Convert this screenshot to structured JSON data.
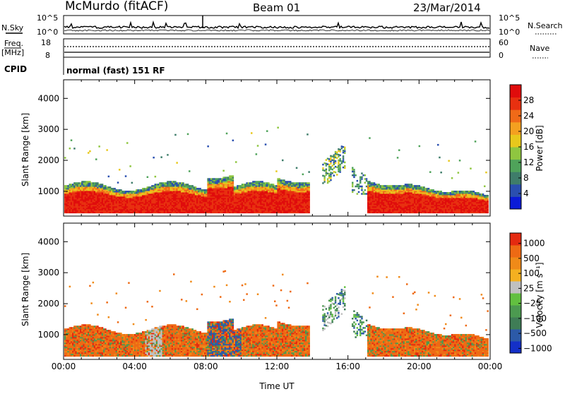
{
  "header": {
    "station": "McMurdo (fitACF)",
    "beam": "Beam 01",
    "date": "23/Mar/2014"
  },
  "summary": {
    "nsky_label": "N.Sky",
    "nsearch_label": "N.Search",
    "noise_ticks_left": [
      "10^5",
      "10^0"
    ],
    "noise_ticks_right": [
      "10^5",
      "10^0"
    ],
    "freq_label": "Freq.",
    "freq_unit": "[MHz]",
    "freq_ticks": [
      "18",
      "8"
    ],
    "nave_label": "Nave",
    "nave_ticks": [
      "60",
      "0"
    ],
    "cpid_label": "CPID",
    "cpid_value": "normal (fast) 151 RF"
  },
  "chart_data": [
    {
      "type": "heatmap",
      "name": "power",
      "ylabel": "Slant Range [km]",
      "xlabel": "",
      "yticks": [
        "1000",
        "2000",
        "3000",
        "4000"
      ],
      "ylim": [
        200,
        4600
      ],
      "xlim_hours": [
        0,
        24
      ],
      "colorbar": {
        "label": "Power [dB]",
        "ticks": [
          "4",
          "8",
          "12",
          "16",
          "20",
          "24",
          "28"
        ],
        "colors": [
          "#0a1bd8",
          "#2a4fb0",
          "#3f7d6a",
          "#4fa35a",
          "#8fc640",
          "#e8c81c",
          "#f4a020",
          "#f06a18",
          "#e83010",
          "#e00c0c"
        ]
      },
      "bands": [
        {
          "t0": 0.0,
          "t1": 13.8,
          "low": 400,
          "high": 1300
        },
        {
          "t0": 17.0,
          "t1": 24.0,
          "low": 400,
          "high": 1300
        }
      ]
    },
    {
      "type": "heatmap",
      "name": "velocity",
      "ylabel": "Slant Range [km]",
      "xlabel": "Time UT",
      "yticks": [
        "1000",
        "2000",
        "3000",
        "4000"
      ],
      "ylim": [
        200,
        4600
      ],
      "xlim_hours": [
        0,
        24
      ],
      "xticks": [
        "00:00",
        "04:00",
        "08:00",
        "12:00",
        "16:00",
        "20:00",
        "00:00"
      ],
      "colorbar": {
        "label": "Velocity [m s⁻¹]",
        "ticks": [
          "1000",
          "500",
          "100",
          "25",
          "−25",
          "−100",
          "−500",
          "−1000"
        ],
        "colors": [
          "#1430c8",
          "#2c5aa8",
          "#3f7d56",
          "#4c9a50",
          "#62c040",
          "#c0c0c0",
          "#f4b020",
          "#f08a18",
          "#ee6a14",
          "#e42a10"
        ]
      }
    }
  ]
}
